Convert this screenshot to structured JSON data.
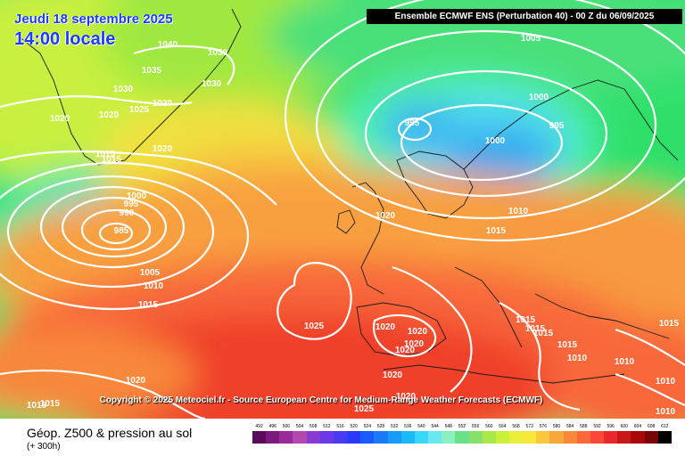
{
  "header": {
    "date": "Jeudi 18 septembre 2025",
    "time": "14:00 locale",
    "model": "Ensemble ECMWF ENS  (Perturbation 40)  -  00 Z du 06/09/2025"
  },
  "copyright": "Copyright © 2025 Meteociel.fr - Source European Centre for Medium-Range Weather Forecasts (ECMWF)",
  "legend": {
    "title": "Géop. Z500 & pression au sol",
    "subtitle": "(+ 300h)",
    "values": [
      "492",
      "496",
      "500",
      "504",
      "508",
      "512",
      "516",
      "520",
      "524",
      "528",
      "532",
      "536",
      "540",
      "544",
      "548",
      "552",
      "556",
      "560",
      "564",
      "568",
      "572",
      "576",
      "580",
      "584",
      "588",
      "592",
      "596",
      "600",
      "604",
      "608",
      "612"
    ],
    "colors": [
      "#5a0a5a",
      "#7a1a7a",
      "#9a2a9a",
      "#b04ab0",
      "#8a3ad0",
      "#6a3ae8",
      "#4a3af0",
      "#2a3af8",
      "#1a5af8",
      "#1a7af8",
      "#1a9af8",
      "#1abaf8",
      "#3ad8f8",
      "#6ae8f0",
      "#8af0c0",
      "#6ae08a",
      "#8ae06a",
      "#aae84a",
      "#caf03a",
      "#eaf03a",
      "#f8e83a",
      "#f8c83a",
      "#f8a83a",
      "#f8883a",
      "#f8683a",
      "#f8483a",
      "#e8282a",
      "#c81818",
      "#a80808",
      "#780808",
      "#000000"
    ]
  },
  "isobar_labels": [
    {
      "text": "1040"
    },
    {
      "text": "1035"
    },
    {
      "text": "1030"
    },
    {
      "text": "1030"
    },
    {
      "text": "1030"
    },
    {
      "text": "1025"
    },
    {
      "text": "1020"
    },
    {
      "text": "1020"
    },
    {
      "text": "1020"
    },
    {
      "text": "1020"
    },
    {
      "text": "1015"
    },
    {
      "text": "1015"
    },
    {
      "text": "1000"
    },
    {
      "text": "995"
    },
    {
      "text": "990"
    },
    {
      "text": "985"
    },
    {
      "text": "1005"
    },
    {
      "text": "1010"
    },
    {
      "text": "1015"
    },
    {
      "text": "1025"
    },
    {
      "text": "1020"
    },
    {
      "text": "1015"
    },
    {
      "text": "1005"
    },
    {
      "text": "995"
    },
    {
      "text": "1000"
    },
    {
      "text": "1000"
    },
    {
      "text": "995"
    },
    {
      "text": "1020"
    },
    {
      "text": "1010"
    },
    {
      "text": "1015"
    },
    {
      "text": "1015"
    },
    {
      "text": "1015"
    },
    {
      "text": "1015"
    },
    {
      "text": "1015"
    },
    {
      "text": "1010"
    },
    {
      "text": "1010"
    },
    {
      "text": "1015"
    },
    {
      "text": "1010"
    },
    {
      "text": "1010"
    },
    {
      "text": "1020"
    },
    {
      "text": "1020"
    },
    {
      "text": "1020"
    },
    {
      "text": "1020"
    },
    {
      "text": "1020"
    },
    {
      "text": "1025"
    },
    {
      "text": "1020"
    },
    {
      "text": "1015"
    }
  ]
}
